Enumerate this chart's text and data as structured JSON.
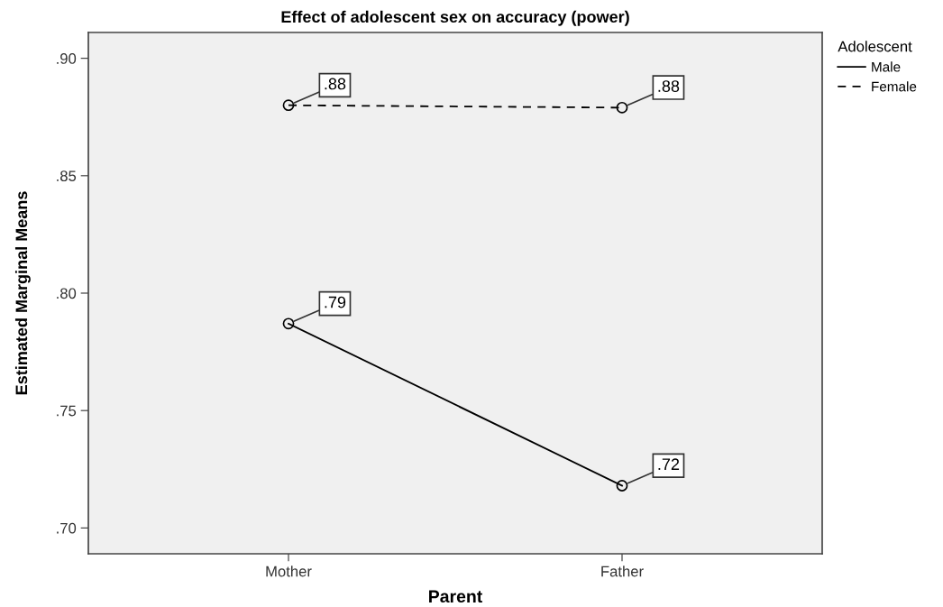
{
  "chart_data": {
    "type": "line",
    "title": "Effect of adolescent sex on accuracy (power)",
    "xlabel": "Parent",
    "ylabel": "Estimated Marginal Means",
    "legend_title": "Adolescent",
    "categories": [
      "Mother",
      "Father"
    ],
    "series": [
      {
        "name": "Male",
        "color": "#000000",
        "line_style": "solid",
        "values": [
          0.787,
          0.718
        ],
        "value_labels": [
          ".79",
          ".72"
        ]
      },
      {
        "name": "Female",
        "color": "#000000",
        "line_style": "dashed",
        "values": [
          0.88,
          0.879
        ],
        "value_labels": [
          ".88",
          ".88"
        ]
      }
    ],
    "ylim": [
      0.689,
      0.911
    ],
    "yticks": [
      {
        "value": 0.7,
        "label": ".70"
      },
      {
        "value": 0.75,
        "label": ".75"
      },
      {
        "value": 0.8,
        "label": ".80"
      },
      {
        "value": 0.85,
        "label": ".85"
      },
      {
        "value": 0.9,
        "label": ".90"
      }
    ],
    "marker": "circle",
    "legend": "top right",
    "grid": false
  }
}
